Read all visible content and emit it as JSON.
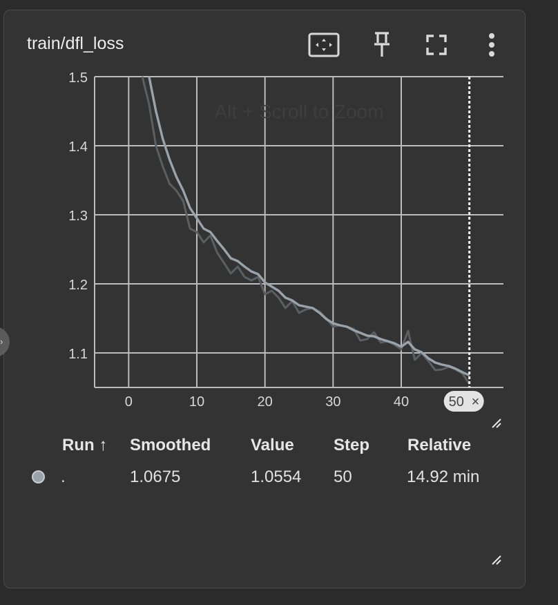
{
  "card": {
    "title": "train/dfl_loss",
    "tools": {
      "fit_icon": "fit-domain-icon",
      "pin_icon": "pin-icon",
      "fullscreen_icon": "fullscreen-icon",
      "more_icon": "more-vert-icon"
    },
    "zoom_hint": "Alt + Scroll to Zoom",
    "step_chip": {
      "label": "50",
      "close": "×"
    }
  },
  "chart_data": {
    "type": "line",
    "xlim": [
      -5,
      55
    ],
    "ylim": [
      1.05,
      1.5
    ],
    "x_ticks": [
      0,
      10,
      20,
      30,
      40
    ],
    "x_tick_labels": [
      "0",
      "10",
      "20",
      "30",
      "40"
    ],
    "y_ticks": [
      1.1,
      1.2,
      1.3,
      1.4,
      1.5
    ],
    "y_tick_labels": [
      "1.1",
      "1.2",
      "1.3",
      "1.4",
      "1.5"
    ],
    "grid": true,
    "hover_step": 50,
    "series": [
      {
        "role": "raw",
        "color": "#5b5f63",
        "x": [
          2,
          3,
          4,
          5,
          6,
          7,
          8,
          9,
          10,
          11,
          12,
          13,
          14,
          15,
          16,
          17,
          18,
          19,
          20,
          21,
          22,
          23,
          24,
          25,
          26,
          27,
          28,
          29,
          30,
          31,
          32,
          33,
          34,
          35,
          36,
          37,
          38,
          39,
          40,
          41,
          42,
          43,
          44,
          45,
          46,
          47,
          48,
          49,
          50
        ],
        "values": [
          1.5,
          1.46,
          1.4,
          1.37,
          1.345,
          1.335,
          1.32,
          1.28,
          1.275,
          1.26,
          1.27,
          1.245,
          1.23,
          1.215,
          1.225,
          1.21,
          1.205,
          1.21,
          1.185,
          1.19,
          1.18,
          1.165,
          1.175,
          1.158,
          1.163,
          1.165,
          1.16,
          1.15,
          1.138,
          1.14,
          1.138,
          1.135,
          1.118,
          1.12,
          1.13,
          1.115,
          1.117,
          1.112,
          1.105,
          1.132,
          1.09,
          1.1,
          1.088,
          1.075,
          1.076,
          1.08,
          1.076,
          1.07,
          1.055
        ]
      },
      {
        "role": "smoothed",
        "color": "#9aa3ab",
        "x": [
          3,
          4,
          5,
          6,
          7,
          8,
          9,
          10,
          11,
          12,
          13,
          14,
          15,
          16,
          17,
          18,
          19,
          20,
          21,
          22,
          23,
          24,
          25,
          26,
          27,
          28,
          29,
          30,
          31,
          32,
          33,
          34,
          35,
          36,
          37,
          38,
          39,
          40,
          41,
          42,
          43,
          44,
          45,
          46,
          47,
          48,
          49,
          50
        ],
        "values": [
          1.5,
          1.45,
          1.41,
          1.38,
          1.355,
          1.335,
          1.31,
          1.295,
          1.28,
          1.275,
          1.262,
          1.25,
          1.237,
          1.233,
          1.225,
          1.218,
          1.214,
          1.202,
          1.196,
          1.19,
          1.18,
          1.176,
          1.169,
          1.167,
          1.165,
          1.158,
          1.149,
          1.143,
          1.14,
          1.138,
          1.133,
          1.129,
          1.125,
          1.124,
          1.12,
          1.117,
          1.114,
          1.109,
          1.116,
          1.105,
          1.101,
          1.092,
          1.086,
          1.083,
          1.081,
          1.077,
          1.072,
          1.0675
        ]
      }
    ]
  },
  "table": {
    "headers": {
      "run": "Run ↑",
      "smoothed": "Smoothed",
      "value": "Value",
      "step": "Step",
      "relative": "Relative"
    },
    "rows": [
      {
        "run_color": "#9aa3ab",
        "run": ".",
        "smoothed": "1.0675",
        "value": "1.0554",
        "step": "50",
        "relative": "14.92 min"
      }
    ]
  }
}
